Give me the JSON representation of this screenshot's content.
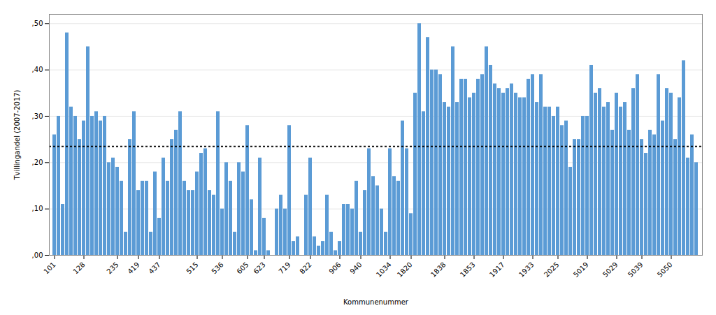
{
  "chart_data": {
    "type": "bar",
    "xlabel": "Kommunenummer",
    "ylabel": "Tvillingandel (2007-2017)",
    "color": "#5B9BD5",
    "hline": 0.235,
    "ylim": [
      0.0,
      0.52
    ],
    "yticks": [
      {
        "value": 0.0,
        "label": ",00"
      },
      {
        "value": 0.1,
        "label": ",10"
      },
      {
        "value": 0.2,
        "label": ",20"
      },
      {
        "value": 0.3,
        "label": ",30"
      },
      {
        "value": 0.4,
        "label": ",40"
      },
      {
        "value": 0.5,
        "label": ",50"
      }
    ],
    "grid": true,
    "categories": [
      "101",
      null,
      null,
      null,
      null,
      null,
      null,
      "128",
      null,
      null,
      null,
      null,
      null,
      null,
      null,
      "235",
      null,
      null,
      null,
      null,
      "419",
      null,
      null,
      null,
      null,
      "437",
      null,
      null,
      null,
      null,
      null,
      null,
      null,
      null,
      "515",
      null,
      null,
      null,
      null,
      null,
      "536",
      null,
      null,
      null,
      null,
      null,
      "605",
      null,
      null,
      null,
      "623",
      null,
      null,
      null,
      null,
      null,
      "719",
      null,
      null,
      null,
      null,
      "822",
      null,
      null,
      null,
      null,
      null,
      null,
      "906",
      null,
      null,
      null,
      null,
      "940",
      null,
      null,
      null,
      null,
      null,
      null,
      "1034",
      null,
      null,
      null,
      null,
      "1820",
      null,
      null,
      null,
      null,
      null,
      null,
      null,
      "1838",
      null,
      null,
      null,
      null,
      null,
      null,
      "1853",
      null,
      null,
      null,
      null,
      null,
      null,
      "1917",
      null,
      null,
      null,
      null,
      null,
      null,
      "1933",
      null,
      null,
      null,
      null,
      null,
      "2025",
      null,
      null,
      null,
      null,
      null,
      null,
      "5019",
      null,
      null,
      null,
      null,
      null,
      null,
      "5029",
      null,
      null,
      null,
      null,
      null,
      "5039",
      null,
      null,
      null,
      null,
      null,
      null,
      "5050",
      null,
      null,
      null,
      null,
      null,
      null
    ],
    "values": [
      0.26,
      0.3,
      0.11,
      0.48,
      0.32,
      0.3,
      0.25,
      0.29,
      0.45,
      0.3,
      0.31,
      0.29,
      0.3,
      0.2,
      0.21,
      0.19,
      0.16,
      0.05,
      0.25,
      0.31,
      0.14,
      0.16,
      0.16,
      0.05,
      0.18,
      0.08,
      0.21,
      0.16,
      0.25,
      0.27,
      0.31,
      0.16,
      0.14,
      0.14,
      0.18,
      0.22,
      0.23,
      0.14,
      0.13,
      0.31,
      0.1,
      0.2,
      0.16,
      0.05,
      0.2,
      0.18,
      0.28,
      0.12,
      0.01,
      0.21,
      0.08,
      0.01,
      0.0,
      0.1,
      0.13,
      0.1,
      0.28,
      0.03,
      0.04,
      0.0,
      0.13,
      0.21,
      0.04,
      0.02,
      0.03,
      0.13,
      0.05,
      0.01,
      0.03,
      0.11,
      0.11,
      0.1,
      0.16,
      0.05,
      0.14,
      0.23,
      0.17,
      0.15,
      0.1,
      0.05,
      0.23,
      0.17,
      0.16,
      0.29,
      0.23,
      0.09,
      0.35,
      0.5,
      0.31,
      0.47,
      0.4,
      0.4,
      0.39,
      0.33,
      0.32,
      0.45,
      0.33,
      0.38,
      0.38,
      0.34,
      0.35,
      0.38,
      0.39,
      0.45,
      0.41,
      0.37,
      0.36,
      0.35,
      0.36,
      0.37,
      0.35,
      0.34,
      0.34,
      0.38,
      0.39,
      0.33,
      0.39,
      0.32,
      0.32,
      0.3,
      0.32,
      0.28,
      0.29,
      0.19,
      0.25,
      0.25,
      0.3,
      0.3,
      0.41,
      0.35,
      0.36,
      0.32,
      0.33,
      0.27,
      0.35,
      0.32,
      0.33,
      0.27,
      0.36,
      0.39,
      0.25,
      0.22,
      0.27,
      0.26,
      0.39,
      0.29,
      0.36,
      0.35,
      0.25,
      0.34,
      0.42,
      0.21,
      0.26,
      0.2
    ]
  }
}
